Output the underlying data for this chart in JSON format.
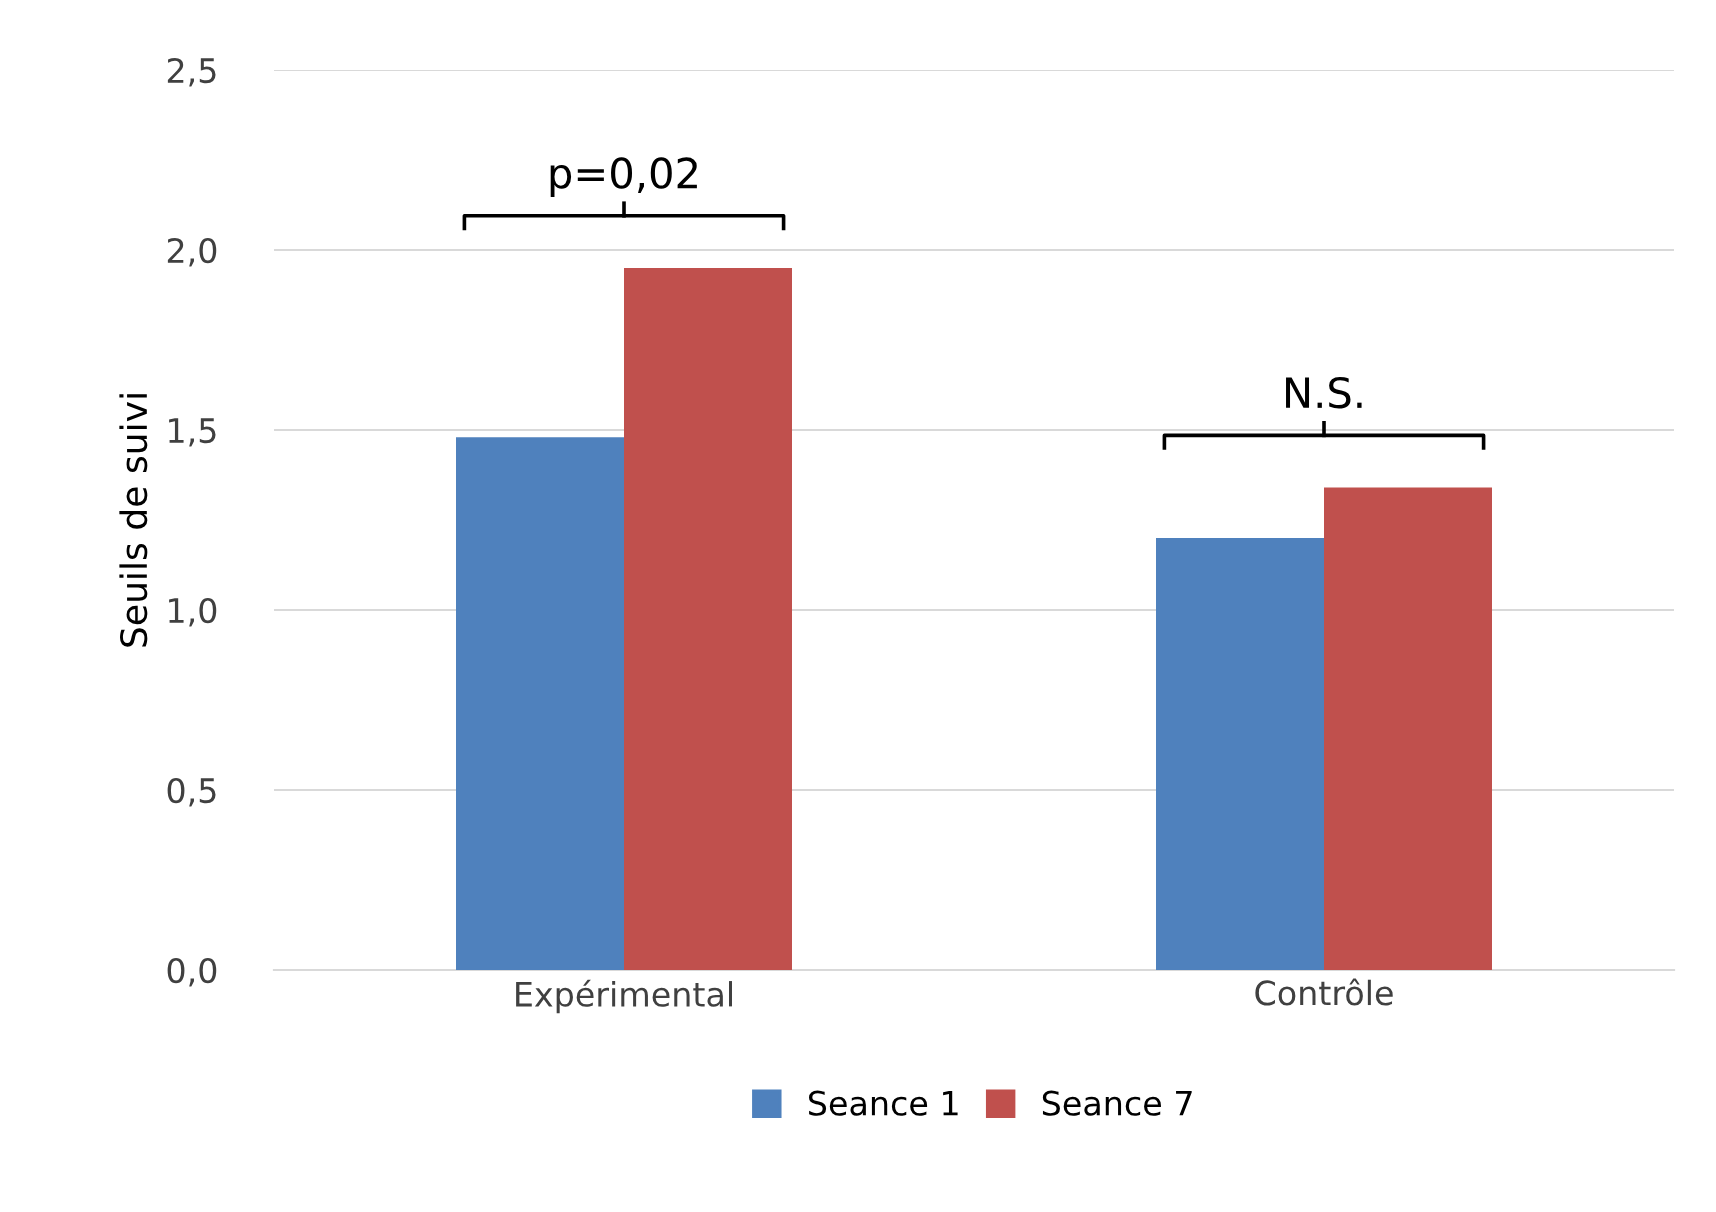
{
  "chart_data": {
    "type": "bar",
    "ylabel": "Seuils de suivi",
    "categories": [
      "Expérimental",
      "Contrôle"
    ],
    "series": [
      {
        "name": "Seance 1",
        "color": "#4f81bd",
        "values": [
          1.48,
          1.2
        ]
      },
      {
        "name": "Seance 7",
        "color": "#c0504d",
        "values": [
          1.95,
          1.34
        ]
      }
    ],
    "ylim": [
      0,
      2.5
    ],
    "yticks": [
      {
        "value": 0,
        "label": "0,0"
      },
      {
        "value": 0.5,
        "label": "0,5"
      },
      {
        "value": 1,
        "label": "1,0"
      },
      {
        "value": 1.5,
        "label": "1,5"
      },
      {
        "value": 2,
        "label": "2,0"
      },
      {
        "value": 2.5,
        "label": "2,5"
      }
    ],
    "grid": "y",
    "legend": "bottom",
    "annotations": [
      "p=0,02",
      "N.S."
    ]
  }
}
